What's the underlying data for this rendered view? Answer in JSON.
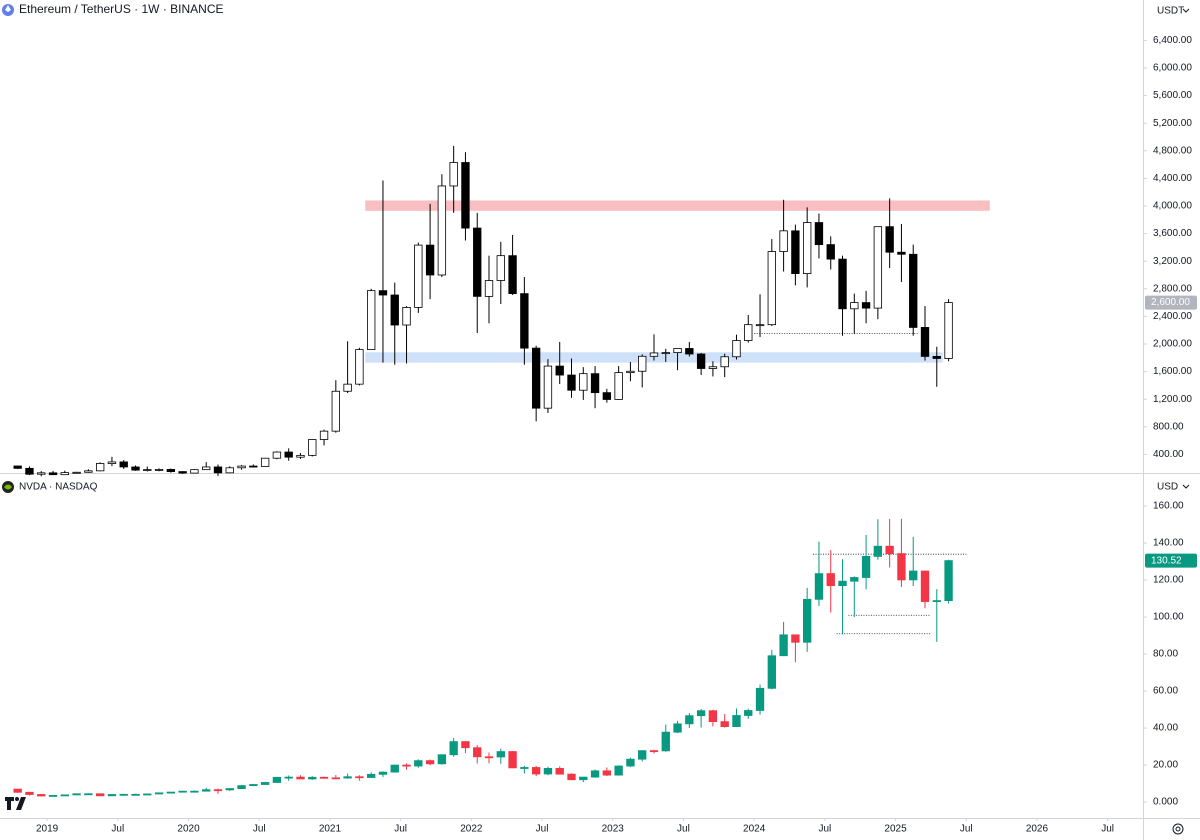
{
  "chart_data": [
    {
      "type": "candlestick",
      "title": "Ethereum / TetherUS · 1W · BINANCE",
      "currency": "USDT",
      "up_color": "#ffffff",
      "down_color": "#000000",
      "border_color": "#000000",
      "x": [
        "2018-10",
        "2018-11",
        "2018-12",
        "2019-01",
        "2019-02",
        "2019-03",
        "2019-04",
        "2019-05",
        "2019-06",
        "2019-07",
        "2019-08",
        "2019-09",
        "2019-10",
        "2019-11",
        "2019-12",
        "2020-01",
        "2020-02",
        "2020-03",
        "2020-04",
        "2020-05",
        "2020-06",
        "2020-07",
        "2020-08",
        "2020-09",
        "2020-10",
        "2020-11",
        "2020-12",
        "2021-01",
        "2021-02",
        "2021-03",
        "2021-04",
        "2021-05",
        "2021-06",
        "2021-07",
        "2021-08",
        "2021-09",
        "2021-10",
        "2021-11",
        "2021-12",
        "2022-01",
        "2022-02",
        "2022-03",
        "2022-04",
        "2022-05",
        "2022-06",
        "2022-07",
        "2022-08",
        "2022-09",
        "2022-10",
        "2022-11",
        "2022-12",
        "2023-01",
        "2023-02",
        "2023-03",
        "2023-04",
        "2023-05",
        "2023-06",
        "2023-07",
        "2023-08",
        "2023-09",
        "2023-10",
        "2023-11",
        "2023-12",
        "2024-01",
        "2024-02",
        "2024-03",
        "2024-04",
        "2024-05",
        "2024-06",
        "2024-07",
        "2024-08",
        "2024-09",
        "2024-10",
        "2024-11",
        "2024-12",
        "2025-01",
        "2025-02",
        "2025-03",
        "2025-04",
        "2025-05"
      ],
      "open": [
        232,
        198,
        113,
        133,
        106,
        136,
        141,
        162,
        268,
        291,
        218,
        172,
        180,
        182,
        151,
        129,
        179,
        218,
        133,
        206,
        231,
        225,
        345,
        434,
        360,
        386,
        616,
        737,
        1315,
        1418,
        1919,
        2773,
        2710,
        2275,
        2530,
        3433,
        3000,
        4290,
        4630,
        3680,
        2690,
        2920,
        3280,
        2730,
        1940,
        1070,
        1680,
        1550,
        1330,
        1570,
        1295,
        1196,
        1585,
        1605,
        1822,
        1870,
        1875,
        1935,
        1855,
        1645,
        1670,
        1815,
        2050,
        2280,
        2280,
        3340,
        3640,
        3020,
        3760,
        3440,
        3230,
        2510,
        2600,
        2520,
        3700,
        3330,
        3300,
        2240,
        1820,
        1790
      ],
      "high": [
        237,
        225,
        158,
        160,
        165,
        148,
        185,
        285,
        365,
        318,
        240,
        225,
        198,
        195,
        155,
        185,
        288,
        253,
        228,
        245,
        255,
        350,
        445,
        488,
        420,
        620,
        760,
        1475,
        2040,
        1945,
        2800,
        4370,
        2890,
        2550,
        3470,
        4030,
        4460,
        4870,
        4780,
        3900,
        3280,
        3480,
        3580,
        2970,
        1975,
        1780,
        2030,
        1790,
        1665,
        1680,
        1350,
        1680,
        1740,
        1850,
        2140,
        1930,
        1930,
        2030,
        1870,
        1750,
        1860,
        2135,
        2420,
        2720,
        3520,
        4090,
        3730,
        3980,
        3890,
        3560,
        3280,
        2730,
        2770,
        3680,
        4110,
        3740,
        3440,
        2550,
        1960,
        2650
      ],
      "low": [
        188,
        101,
        82,
        100,
        102,
        125,
        135,
        155,
        230,
        190,
        162,
        152,
        155,
        135,
        116,
        127,
        176,
        86,
        128,
        178,
        216,
        222,
        330,
        308,
        335,
        370,
        530,
        714,
        1290,
        1400,
        1915,
        1730,
        1700,
        1718,
        2450,
        2650,
        2970,
        3900,
        3500,
        2160,
        2300,
        2580,
        2710,
        1700,
        880,
        1000,
        1420,
        1220,
        1190,
        1070,
        1150,
        1190,
        1460,
        1370,
        1760,
        1740,
        1620,
        1820,
        1550,
        1530,
        1520,
        1775,
        2020,
        2100,
        2260,
        3050,
        2850,
        2820,
        3240,
        3080,
        2120,
        2150,
        2300,
        2360,
        3100,
        2900,
        2120,
        1760,
        1380,
        1750
      ],
      "close": [
        198,
        113,
        133,
        106,
        136,
        141,
        162,
        268,
        291,
        218,
        172,
        180,
        182,
        151,
        129,
        179,
        218,
        133,
        206,
        231,
        225,
        345,
        434,
        360,
        386,
        616,
        737,
        1315,
        1418,
        1919,
        2773,
        2710,
        2275,
        2530,
        3433,
        3000,
        4290,
        4630,
        3680,
        2690,
        2920,
        3280,
        2730,
        1940,
        1070,
        1680,
        1550,
        1330,
        1570,
        1295,
        1196,
        1585,
        1605,
        1822,
        1870,
        1875,
        1935,
        1855,
        1645,
        1670,
        1815,
        2050,
        2280,
        2280,
        3340,
        3640,
        3020,
        3760,
        3440,
        3230,
        2510,
        2600,
        2520,
        3700,
        3330,
        3300,
        2240,
        1820,
        1790,
        2600
      ],
      "zones": [
        {
          "from": "2021-04",
          "to": "2025-09",
          "low": 3930,
          "high": 4080,
          "color": "#f7b3b6"
        },
        {
          "from": "2021-04",
          "to": "2025-05",
          "low": 1730,
          "high": 1880,
          "color": "#c6dcf7"
        }
      ],
      "levels": [
        {
          "value": 2150,
          "from": "2024-01",
          "to": "2025-03"
        }
      ],
      "last_price": {
        "value": 2600,
        "label": "2,600.00"
      },
      "last_price_color": "#b2b5be",
      "xlim": [
        "2018-09",
        "2026-10"
      ],
      "ylim": [
        145,
        6985
      ],
      "yticks": [
        {
          "value": 400,
          "label": "400.00"
        },
        {
          "value": 800,
          "label": "800.00"
        },
        {
          "value": 1200,
          "label": "1,200.00"
        },
        {
          "value": 1600,
          "label": "1,600.00"
        },
        {
          "value": 2000,
          "label": "2,000.00"
        },
        {
          "value": 2400,
          "label": "2,400.00"
        },
        {
          "value": 2800,
          "label": "2,800.00"
        },
        {
          "value": 3200,
          "label": "3,200.00"
        },
        {
          "value": 3600,
          "label": "3,600.00"
        },
        {
          "value": 4000,
          "label": "4,000.00"
        },
        {
          "value": 4400,
          "label": "4,400.00"
        },
        {
          "value": 4800,
          "label": "4,800.00"
        },
        {
          "value": 5200,
          "label": "5,200.00"
        },
        {
          "value": 5600,
          "label": "5,600.00"
        },
        {
          "value": 6000,
          "label": "6,000.00"
        },
        {
          "value": 6400,
          "label": "6,400.00"
        }
      ],
      "grid": false
    },
    {
      "type": "candlestick",
      "title": "NVDA · NASDAQ",
      "currency": "USD",
      "up_color": "#089981",
      "down_color": "#f23645",
      "border_color": null,
      "x": [
        "2018-10",
        "2018-11",
        "2018-12",
        "2019-01",
        "2019-02",
        "2019-03",
        "2019-04",
        "2019-05",
        "2019-06",
        "2019-07",
        "2019-08",
        "2019-09",
        "2019-10",
        "2019-11",
        "2019-12",
        "2020-01",
        "2020-02",
        "2020-03",
        "2020-04",
        "2020-05",
        "2020-06",
        "2020-07",
        "2020-08",
        "2020-09",
        "2020-10",
        "2020-11",
        "2020-12",
        "2021-01",
        "2021-02",
        "2021-03",
        "2021-04",
        "2021-05",
        "2021-06",
        "2021-07",
        "2021-08",
        "2021-09",
        "2021-10",
        "2021-11",
        "2021-12",
        "2022-01",
        "2022-02",
        "2022-03",
        "2022-04",
        "2022-05",
        "2022-06",
        "2022-07",
        "2022-08",
        "2022-09",
        "2022-10",
        "2022-11",
        "2022-12",
        "2023-01",
        "2023-02",
        "2023-03",
        "2023-04",
        "2023-05",
        "2023-06",
        "2023-07",
        "2023-08",
        "2023-09",
        "2023-10",
        "2023-11",
        "2023-12",
        "2024-01",
        "2024-02",
        "2024-03",
        "2024-04",
        "2024-05",
        "2024-06",
        "2024-07",
        "2024-08",
        "2024-09",
        "2024-10",
        "2024-11",
        "2024-12",
        "2025-01",
        "2025-02",
        "2025-03",
        "2025-04",
        "2025-05"
      ],
      "open": [
        7.0,
        5.3,
        4.1,
        3.3,
        3.6,
        3.9,
        4.5,
        4.5,
        3.4,
        4.1,
        4.2,
        4.2,
        4.4,
        5.0,
        5.4,
        5.9,
        5.9,
        6.7,
        6.6,
        7.3,
        8.9,
        9.5,
        10.6,
        13.4,
        13.5,
        12.5,
        13.4,
        13.1,
        13.0,
        13.7,
        13.3,
        15.0,
        16.2,
        20.0,
        19.5,
        22.4,
        20.7,
        25.6,
        32.7,
        29.4,
        24.5,
        24.4,
        27.3,
        18.5,
        18.7,
        15.2,
        18.2,
        15.1,
        12.1,
        13.5,
        16.9,
        14.6,
        19.5,
        23.2,
        27.8,
        27.7,
        37.8,
        42.3,
        46.7,
        49.4,
        43.5,
        40.8,
        46.8,
        49.5,
        61.5,
        79.1,
        90.4,
        86.4,
        109.6,
        123.5,
        117.0,
        119.4,
        121.4,
        132.8,
        138.3,
        134.3,
        120.1,
        124.9,
        108.4,
        108.9
      ],
      "high": [
        7.1,
        5.5,
        4.3,
        3.9,
        4.0,
        4.6,
        4.8,
        4.7,
        4.2,
        4.5,
        4.5,
        4.6,
        5.1,
        5.4,
        6.0,
        6.3,
        7.7,
        7.3,
        7.5,
        9.2,
        9.7,
        11.0,
        13.6,
        14.4,
        14.5,
        14.0,
        13.8,
        14.6,
        15.4,
        14.5,
        16.1,
        16.6,
        20.2,
        20.9,
        23.1,
        23.0,
        25.6,
        34.6,
        32.9,
        30.8,
        26.8,
        28.9,
        27.6,
        19.6,
        19.6,
        19.1,
        19.3,
        15.5,
        13.5,
        17.6,
        18.7,
        19.7,
        24.0,
        28.0,
        28.3,
        41.9,
        43.9,
        48.1,
        50.3,
        49.9,
        47.6,
        50.6,
        50.5,
        63.5,
        82.3,
        97.4,
        90.6,
        115.8,
        140.8,
        136.2,
        131.3,
        122.0,
        144.4,
        152.9,
        153.1,
        153.1,
        143.4,
        125.1,
        115.1,
        131.0
      ],
      "low": [
        5.0,
        3.6,
        3.2,
        3.2,
        3.5,
        3.7,
        4.4,
        3.4,
        3.3,
        4.0,
        3.8,
        4.1,
        4.3,
        5.0,
        5.2,
        5.8,
        5.9,
        4.5,
        6.0,
        7.2,
        8.6,
        9.4,
        10.4,
        11.5,
        12.5,
        12.0,
        12.8,
        12.8,
        12.6,
        11.6,
        13.2,
        13.6,
        16.1,
        17.5,
        18.6,
        20.0,
        20.2,
        24.5,
        26.5,
        20.9,
        20.9,
        20.7,
        18.5,
        15.5,
        14.0,
        14.5,
        14.9,
        11.9,
        10.8,
        13.2,
        14.1,
        14.3,
        19.0,
        22.0,
        26.3,
        27.2,
        37.3,
        40.0,
        40.3,
        40.9,
        40.3,
        40.8,
        45.0,
        47.3,
        60.9,
        79.0,
        75.6,
        81.2,
        106.0,
        102.5,
        90.7,
        100.0,
        115.0,
        131.0,
        126.8,
        116.3,
        116.8,
        104.8,
        86.6,
        107.3
      ],
      "close": [
        5.3,
        4.1,
        3.3,
        3.6,
        3.9,
        4.5,
        4.5,
        3.4,
        4.1,
        4.2,
        4.2,
        4.4,
        5.0,
        5.4,
        5.9,
        5.9,
        6.7,
        6.6,
        7.3,
        8.9,
        9.5,
        10.6,
        13.4,
        13.5,
        12.5,
        13.4,
        13.1,
        13.0,
        13.7,
        13.3,
        15.0,
        16.2,
        20.0,
        19.5,
        22.4,
        20.7,
        25.6,
        32.7,
        29.4,
        24.5,
        24.4,
        27.3,
        18.5,
        18.7,
        15.2,
        18.2,
        15.1,
        12.1,
        13.5,
        16.9,
        14.6,
        19.5,
        23.2,
        27.8,
        27.7,
        37.8,
        42.3,
        46.7,
        49.4,
        43.5,
        40.8,
        46.8,
        49.5,
        61.5,
        79.1,
        90.4,
        86.4,
        109.6,
        123.5,
        117.0,
        119.4,
        121.4,
        132.8,
        138.3,
        134.3,
        120.1,
        124.9,
        108.4,
        108.9,
        130.52
      ],
      "zones": [],
      "levels": [
        {
          "value": 134,
          "from": "2024-06",
          "to": "2025-07"
        },
        {
          "value": 101,
          "from": "2024-09",
          "to": "2025-04"
        },
        {
          "value": 91,
          "from": "2024-08",
          "to": "2025-04"
        }
      ],
      "last_price": {
        "value": 130.52,
        "label": "130.52"
      },
      "last_price_color": "#089981",
      "xlim": [
        "2018-09",
        "2026-10"
      ],
      "ylim": [
        -8.6,
        176.8
      ],
      "yticks": [
        {
          "value": 0,
          "label": "0.000"
        },
        {
          "value": 20,
          "label": "20.00"
        },
        {
          "value": 40,
          "label": "40.00"
        },
        {
          "value": 60,
          "label": "60.00"
        },
        {
          "value": 80,
          "label": "80.00"
        },
        {
          "value": 100,
          "label": "100.00"
        },
        {
          "value": 120,
          "label": "120.00"
        },
        {
          "value": 140,
          "label": "140.00"
        },
        {
          "value": 160,
          "label": "160.00"
        }
      ],
      "xticks": [
        {
          "value": "2019-01",
          "label": "2019"
        },
        {
          "value": "2019-07",
          "label": "Jul"
        },
        {
          "value": "2020-01",
          "label": "2020"
        },
        {
          "value": "2020-07",
          "label": "Jul"
        },
        {
          "value": "2021-01",
          "label": "2021"
        },
        {
          "value": "2021-07",
          "label": "Jul"
        },
        {
          "value": "2022-01",
          "label": "2022"
        },
        {
          "value": "2022-07",
          "label": "Jul"
        },
        {
          "value": "2023-01",
          "label": "2023"
        },
        {
          "value": "2023-07",
          "label": "Jul"
        },
        {
          "value": "2024-01",
          "label": "2024"
        },
        {
          "value": "2024-07",
          "label": "Jul"
        },
        {
          "value": "2025-01",
          "label": "2025"
        },
        {
          "value": "2025-07",
          "label": "Jul"
        },
        {
          "value": "2026-01",
          "label": "2026"
        },
        {
          "value": "2026-07",
          "label": "Jul"
        }
      ],
      "grid": false
    }
  ]
}
